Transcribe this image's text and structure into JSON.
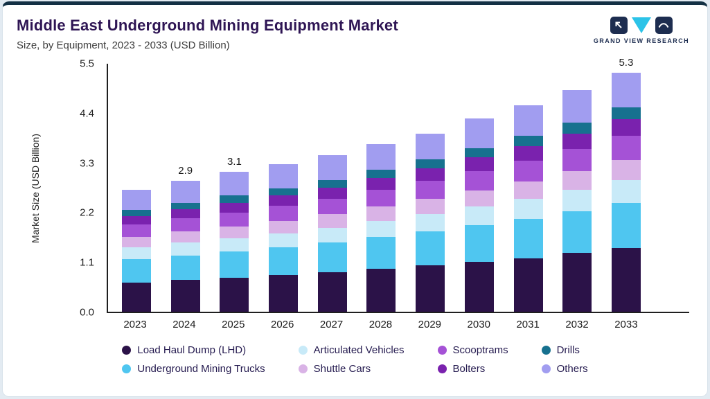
{
  "header": {
    "title": "Middle East Underground Mining Equipment Market",
    "subtitle": "Size, by Equipment, 2023 - 2033 (USD Billion)",
    "brand": "GRAND VIEW RESEARCH"
  },
  "colors": {
    "title_text": "#2e1554",
    "top_accent_bar": "#133044",
    "brand_navy": "#1d2d50",
    "brand_teal": "#2cc3e8"
  },
  "chart_data": {
    "type": "bar",
    "stacked": true,
    "title": "Middle East Underground Mining Equipment Market",
    "subtitle": "Size, by Equipment, 2023 - 2033 (USD Billion)",
    "ylabel": "Market Size (USD Billion)",
    "ylim": [
      0,
      5.5
    ],
    "yticks": [
      "0.0",
      "1.1",
      "2.2",
      "3.3",
      "4.4",
      "5.5"
    ],
    "grid": false,
    "legend_position": "bottom",
    "categories": [
      "2023",
      "2024",
      "2025",
      "2026",
      "2027",
      "2028",
      "2029",
      "2030",
      "2031",
      "2032",
      "2033"
    ],
    "bar_total_labels": [
      "",
      "2.9",
      "3.1",
      "",
      "",
      "",
      "",
      "",
      "",
      "",
      "5.3"
    ],
    "totals": [
      2.7,
      2.9,
      3.1,
      3.28,
      3.48,
      3.72,
      3.95,
      4.28,
      4.58,
      4.92,
      5.3
    ],
    "series": [
      {
        "name": "Load Haul Dump (LHD)",
        "color": "#2b1248",
        "values": [
          0.65,
          0.7,
          0.75,
          0.81,
          0.87,
          0.95,
          1.03,
          1.11,
          1.19,
          1.3,
          1.42
        ]
      },
      {
        "name": "Underground Mining Trucks",
        "color": "#4fc6f0",
        "values": [
          0.52,
          0.55,
          0.58,
          0.62,
          0.66,
          0.71,
          0.75,
          0.81,
          0.87,
          0.93,
          1.0
        ]
      },
      {
        "name": "Articulated Vehicles",
        "color": "#c8eaf8",
        "values": [
          0.26,
          0.28,
          0.3,
          0.31,
          0.33,
          0.35,
          0.38,
          0.41,
          0.44,
          0.47,
          0.5
        ]
      },
      {
        "name": "Shuttle Cars",
        "color": "#d9b3e6",
        "values": [
          0.23,
          0.25,
          0.26,
          0.28,
          0.3,
          0.32,
          0.34,
          0.36,
          0.39,
          0.42,
          0.45
        ]
      },
      {
        "name": "Scooptrams",
        "color": "#a552d6",
        "values": [
          0.27,
          0.29,
          0.31,
          0.33,
          0.35,
          0.37,
          0.4,
          0.43,
          0.46,
          0.49,
          0.53
        ]
      },
      {
        "name": "Bolters",
        "color": "#7a22ae",
        "values": [
          0.19,
          0.2,
          0.22,
          0.23,
          0.24,
          0.26,
          0.28,
          0.3,
          0.32,
          0.34,
          0.37
        ]
      },
      {
        "name": "Drills",
        "color": "#17718f",
        "values": [
          0.14,
          0.15,
          0.16,
          0.16,
          0.17,
          0.19,
          0.2,
          0.21,
          0.23,
          0.25,
          0.27
        ]
      },
      {
        "name": "Others",
        "color": "#a19df0",
        "values": [
          0.44,
          0.48,
          0.52,
          0.54,
          0.56,
          0.57,
          0.57,
          0.65,
          0.68,
          0.72,
          0.76
        ]
      }
    ]
  }
}
